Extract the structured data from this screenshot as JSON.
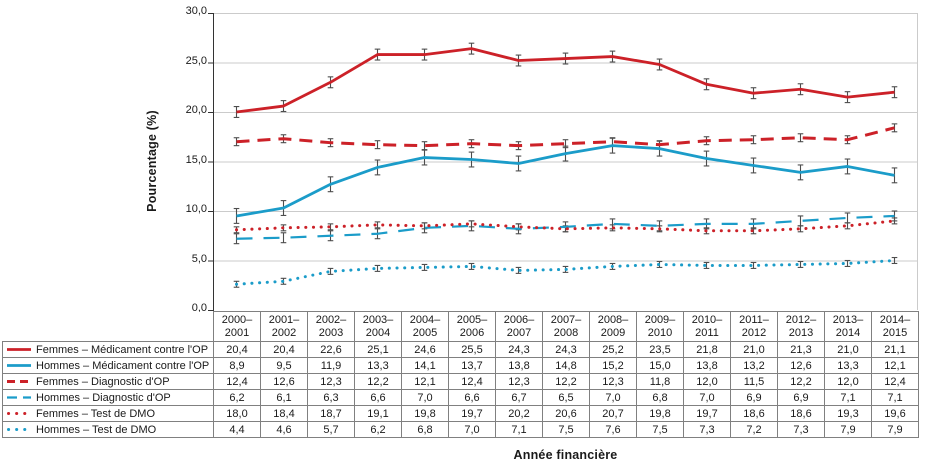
{
  "colors": {
    "femmes": "#CC2128",
    "hommes": "#1B9CC9",
    "grid": "#CBCBCB",
    "axis": "#333333",
    "table_border": "#808080",
    "error_bar": "#4D4D4D",
    "text": "#1A1A1A"
  },
  "chart_data": {
    "type": "line",
    "title": "",
    "ylabel": "Pourcentage (%)",
    "xlabel": "Année financière",
    "ylim": [
      0,
      30
    ],
    "ytick_interval": 5,
    "ytick_labels": [
      "0,0",
      "5,0",
      "10,0",
      "15,0",
      "20,0",
      "25,0",
      "30,0"
    ],
    "grid": true,
    "error_bars": true,
    "legend_position": "table-left",
    "categories": [
      "2000–2001",
      "2001–2002",
      "2002–2003",
      "2003–2004",
      "2004–2005",
      "2005–2006",
      "2006–2007",
      "2007–2008",
      "2008–2009",
      "2009–2010",
      "2010–2011",
      "2011–2012",
      "2012–2013",
      "2013–2014",
      "2014–2015"
    ],
    "series": [
      {
        "name": "Femmes – Médicament contre l'OP",
        "color_key": "femmes",
        "style": "solid",
        "values": [
          20.4,
          20.4,
          22.6,
          25.1,
          24.6,
          25.5,
          24.3,
          24.3,
          25.2,
          23.5,
          21.8,
          21.0,
          21.3,
          21.0,
          21.1
        ],
        "plotted": [
          20.0,
          20.6,
          23.0,
          25.8,
          25.8,
          26.4,
          25.2,
          25.4,
          25.6,
          24.8,
          22.8,
          21.9,
          22.3,
          21.5,
          22.0
        ],
        "error_half": 0.55
      },
      {
        "name": "Hommes – Médicament contre l'OP",
        "color_key": "hommes",
        "style": "solid",
        "values": [
          8.9,
          9.5,
          11.9,
          13.3,
          14.1,
          13.7,
          13.8,
          14.8,
          15.2,
          15.0,
          13.8,
          13.2,
          12.6,
          13.3,
          12.1
        ],
        "plotted": [
          9.5,
          10.3,
          12.7,
          14.4,
          15.4,
          15.2,
          14.8,
          15.8,
          16.6,
          16.3,
          15.3,
          14.6,
          13.9,
          14.5,
          13.6
        ],
        "error_half": 0.75
      },
      {
        "name": "Femmes – Diagnostic d'OP",
        "color_key": "femmes",
        "style": "dashed",
        "values": [
          12.4,
          12.6,
          12.3,
          12.2,
          12.1,
          12.4,
          12.3,
          12.2,
          12.3,
          11.8,
          12.0,
          11.5,
          12.2,
          12.0,
          12.4
        ],
        "plotted": [
          17.0,
          17.3,
          16.9,
          16.7,
          16.6,
          16.8,
          16.6,
          16.8,
          17.0,
          16.7,
          17.1,
          17.2,
          17.4,
          17.2,
          18.4
        ],
        "error_half": 0.4
      },
      {
        "name": "Hommes – Diagnostic d'OP",
        "color_key": "hommes",
        "style": "dashed",
        "values": [
          6.2,
          6.1,
          6.3,
          6.6,
          7.0,
          6.6,
          6.7,
          6.5,
          7.0,
          6.8,
          7.0,
          6.9,
          6.9,
          7.1,
          7.1
        ],
        "plotted": [
          7.2,
          7.3,
          7.5,
          7.7,
          8.3,
          8.5,
          8.2,
          8.4,
          8.7,
          8.5,
          8.7,
          8.7,
          9.0,
          9.3,
          9.5
        ],
        "error_half": 0.5
      },
      {
        "name": "Femmes – Test de DMO",
        "color_key": "femmes",
        "style": "dotted",
        "values": [
          18.0,
          18.4,
          18.7,
          19.1,
          19.8,
          19.7,
          20.2,
          20.6,
          20.7,
          19.8,
          19.7,
          18.6,
          18.6,
          19.3,
          19.6
        ],
        "plotted": [
          8.1,
          8.3,
          8.4,
          8.6,
          8.5,
          8.7,
          8.4,
          8.2,
          8.3,
          8.2,
          8.0,
          8.0,
          8.2,
          8.5,
          9.0
        ],
        "error_half": 0.3
      },
      {
        "name": "Hommes – Test de DMO",
        "color_key": "hommes",
        "style": "dotted",
        "values": [
          4.4,
          4.6,
          5.7,
          6.2,
          6.8,
          7.0,
          7.1,
          7.5,
          7.6,
          7.5,
          7.3,
          7.2,
          7.3,
          7.9,
          7.9
        ],
        "plotted": [
          2.6,
          2.9,
          3.9,
          4.2,
          4.3,
          4.4,
          4.0,
          4.1,
          4.4,
          4.6,
          4.5,
          4.5,
          4.6,
          4.7,
          5.0
        ],
        "error_half": 0.3
      }
    ]
  }
}
